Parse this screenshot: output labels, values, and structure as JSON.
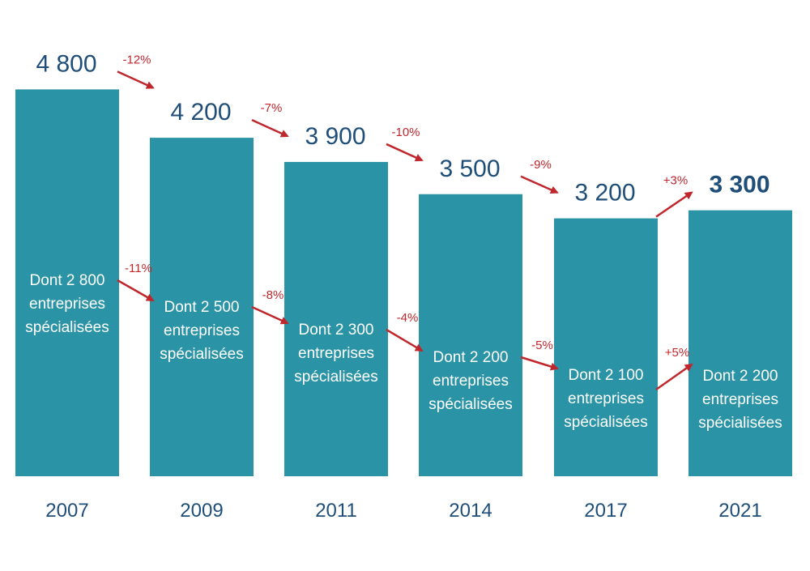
{
  "colors": {
    "bar": "#2a94a6",
    "total_text": "#1f4e79",
    "change_text": "#c0272d",
    "arrow": "#c0272d",
    "inner_text": "#ffffff"
  },
  "chart_data": {
    "type": "bar",
    "title": "",
    "xlabel": "",
    "ylabel": "",
    "grid": false,
    "ylim": [
      0,
      5000
    ],
    "categories": [
      "2007",
      "2009",
      "2011",
      "2014",
      "2017",
      "2021"
    ],
    "series": [
      {
        "values": [
          4800,
          4200,
          3900,
          3500,
          3200,
          3300
        ]
      }
    ],
    "bar_labels": [
      "4 800",
      "4 200",
      "3 900",
      "3 500",
      "3 200",
      "3 300"
    ],
    "emphasized_bar_label_index": 5,
    "inner_labels": [
      [
        "Dont 2 800",
        "entreprises",
        "spécialisées"
      ],
      [
        "Dont 2 500",
        "entreprises",
        "spécialisées"
      ],
      [
        "Dont 2 300",
        "entreprises",
        "spécialisées"
      ],
      [
        "Dont 2 200",
        "entreprises",
        "spécialisées"
      ],
      [
        "Dont 2 100",
        "entreprises",
        "spécialisées"
      ],
      [
        "Dont 2 200",
        "entreprises",
        "spécialisées"
      ]
    ],
    "specialized_values": [
      2800,
      2500,
      2300,
      2200,
      2100,
      2200
    ],
    "total_changes": [
      "-12%",
      "-7%",
      "-10%",
      "-9%",
      "+3%"
    ],
    "specialized_changes": [
      "-11%",
      "-8%",
      "-4%",
      "-5%",
      "+5%"
    ]
  }
}
